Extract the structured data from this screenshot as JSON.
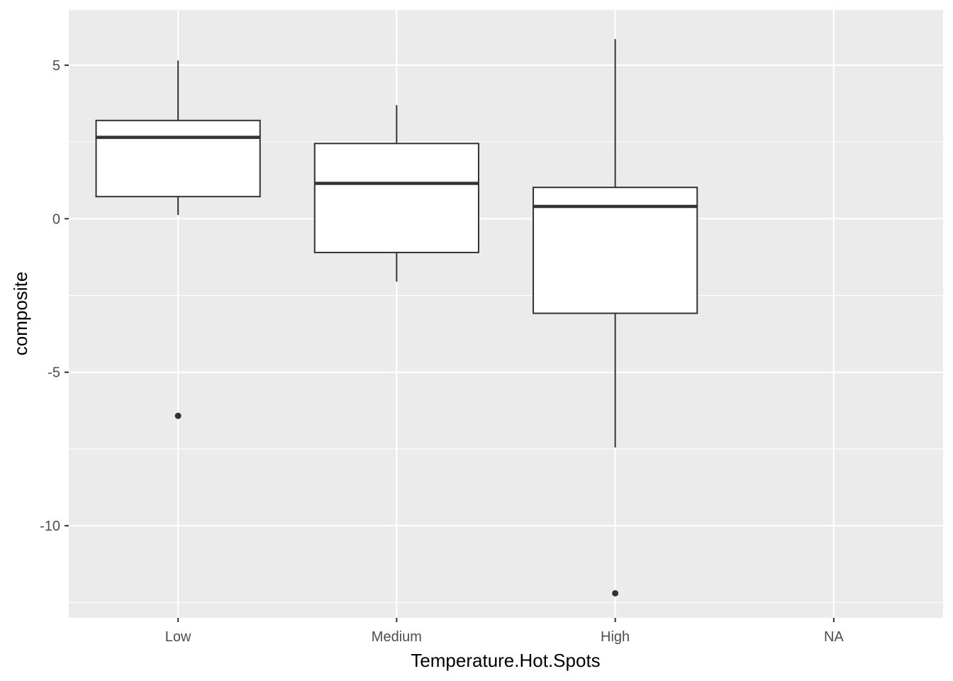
{
  "chart_data": {
    "type": "boxplot",
    "xlabel": "Temperature.Hot.Spots",
    "ylabel": "composite",
    "categories": [
      "Low",
      "Medium",
      "High",
      "NA"
    ],
    "ylim": [
      -13.0,
      6.8
    ],
    "y_ticks": [
      {
        "value": 5,
        "label": "5"
      },
      {
        "value": 0,
        "label": "0"
      },
      {
        "value": -5,
        "label": "-5"
      },
      {
        "value": -10,
        "label": "-10"
      }
    ],
    "y_minor_ticks": [
      2.5,
      -2.5,
      -7.5,
      -12.5
    ],
    "boxes": [
      {
        "category": "Low",
        "whisker_low": 0.12,
        "q1": 0.72,
        "median": 2.65,
        "q3": 3.2,
        "whisker_high": 5.15,
        "outliers": [
          -6.42
        ]
      },
      {
        "category": "Medium",
        "whisker_low": -2.05,
        "q1": -1.1,
        "median": 1.15,
        "q3": 2.45,
        "whisker_high": 3.7,
        "outliers": []
      },
      {
        "category": "High",
        "whisker_low": -7.45,
        "q1": -3.08,
        "median": 0.4,
        "q3": 1.02,
        "whisker_high": 5.85,
        "outliers": [
          -12.2
        ]
      }
    ],
    "grid": true,
    "colors": {
      "panel_background": "#ebebeb",
      "grid_line": "#ffffff",
      "box_fill": "#ffffff",
      "box_stroke": "#333333"
    }
  }
}
